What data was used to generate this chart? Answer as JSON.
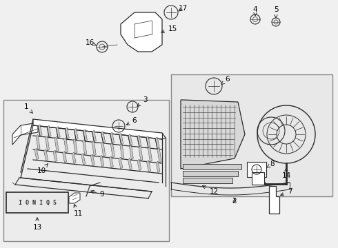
{
  "bg_color": "#f0f0f0",
  "line_color": "#2a2a2a",
  "label_color": "#000000",
  "fig_w": 4.9,
  "fig_h": 3.6,
  "dpi": 100
}
